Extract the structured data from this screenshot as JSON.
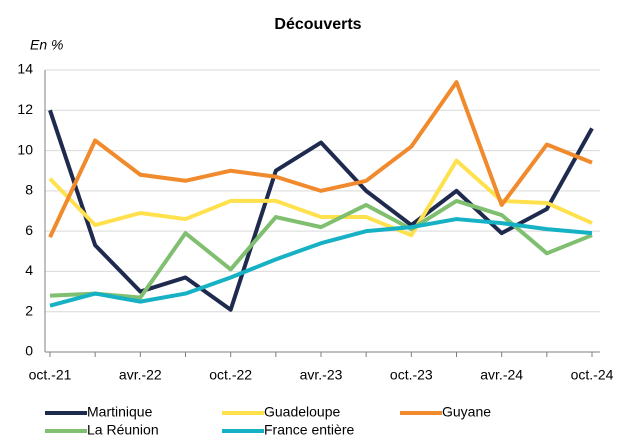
{
  "chart_data": {
    "type": "line",
    "title": "Découverts",
    "y_axis_label": "En %",
    "categories": [
      "oct.-21",
      null,
      "avr.-22",
      null,
      "oct.-22",
      null,
      "avr.-23",
      null,
      "oct.-23",
      null,
      "avr.-24",
      null,
      "oct.-24"
    ],
    "series": [
      {
        "name": "Martinique",
        "color": "#1f2a4f",
        "values": [
          12,
          5.3,
          3.0,
          3.7,
          2.1,
          9.0,
          10.4,
          8.0,
          6.3,
          8.0,
          5.9,
          7.1,
          11.1
        ]
      },
      {
        "name": "Guadeloupe",
        "color": "#ffe14d",
        "values": [
          8.6,
          6.3,
          6.9,
          6.6,
          7.5,
          7.5,
          6.7,
          6.7,
          5.8,
          9.5,
          7.5,
          7.4,
          6.4
        ]
      },
      {
        "name": "Guyane",
        "color": "#f08a2c",
        "values": [
          5.7,
          10.5,
          8.8,
          8.5,
          9.0,
          8.7,
          8.0,
          8.5,
          10.2,
          13.4,
          7.3,
          10.3,
          9.4
        ]
      },
      {
        "name": "La Réunion",
        "color": "#7fbf6f",
        "values": [
          2.8,
          2.9,
          2.7,
          5.9,
          4.1,
          6.7,
          6.2,
          7.3,
          6.1,
          7.5,
          6.8,
          4.9,
          5.8
        ]
      },
      {
        "name": "France entière",
        "color": "#16b1c4",
        "values": [
          2.3,
          2.9,
          2.5,
          2.9,
          3.7,
          4.6,
          5.4,
          6.0,
          6.2,
          6.6,
          6.4,
          6.1,
          5.9
        ]
      }
    ],
    "ylim": [
      0,
      14
    ],
    "yticks": [
      0,
      2,
      4,
      6,
      8,
      10,
      12,
      14
    ],
    "grid": true
  }
}
